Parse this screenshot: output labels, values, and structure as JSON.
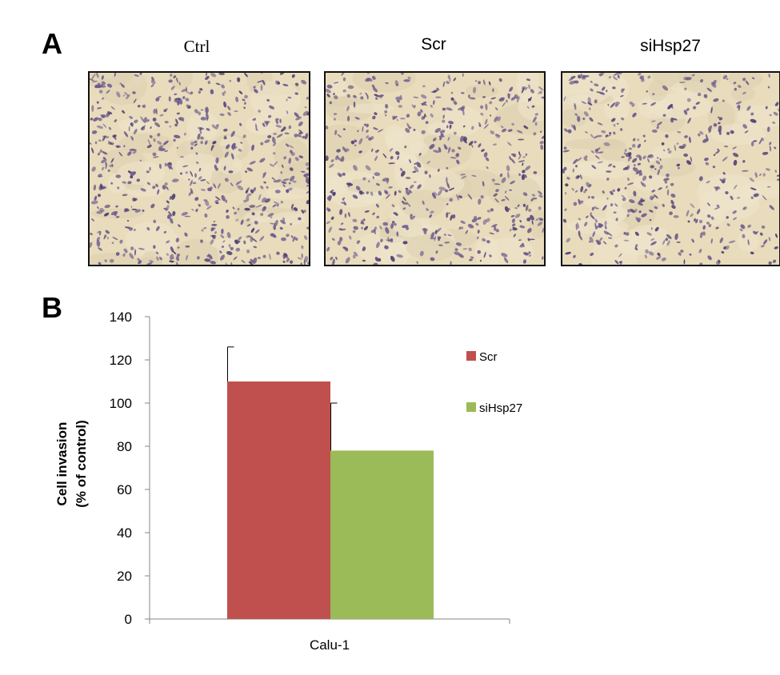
{
  "panels": {
    "a_letter": "A",
    "b_letter": "B"
  },
  "micrographs": [
    {
      "label": "Ctrl",
      "density": 620,
      "seed": 11
    },
    {
      "label": "Scr",
      "density": 540,
      "seed": 29
    },
    {
      "label": "siHsp27",
      "density": 470,
      "seed": 53
    }
  ],
  "micrograph_colors": {
    "background": "#e8dcbc",
    "cell": "#6b5a8e",
    "cell_dark": "#4d3f73"
  },
  "chart_data": {
    "type": "bar",
    "categories": [
      "Calu-1"
    ],
    "series": [
      {
        "name": "Scr",
        "values": [
          110
        ],
        "error": [
          16
        ],
        "color": "#c0504d"
      },
      {
        "name": "siHsp27",
        "values": [
          78
        ],
        "error": [
          22
        ],
        "color": "#9bbb59"
      }
    ],
    "ylabel_line1": "Cell invasion",
    "ylabel_line2": "(% of control)",
    "ylim": [
      0,
      140
    ],
    "yticks": [
      0,
      20,
      40,
      60,
      80,
      100,
      120,
      140
    ],
    "legend_position": "right",
    "grid": false
  }
}
